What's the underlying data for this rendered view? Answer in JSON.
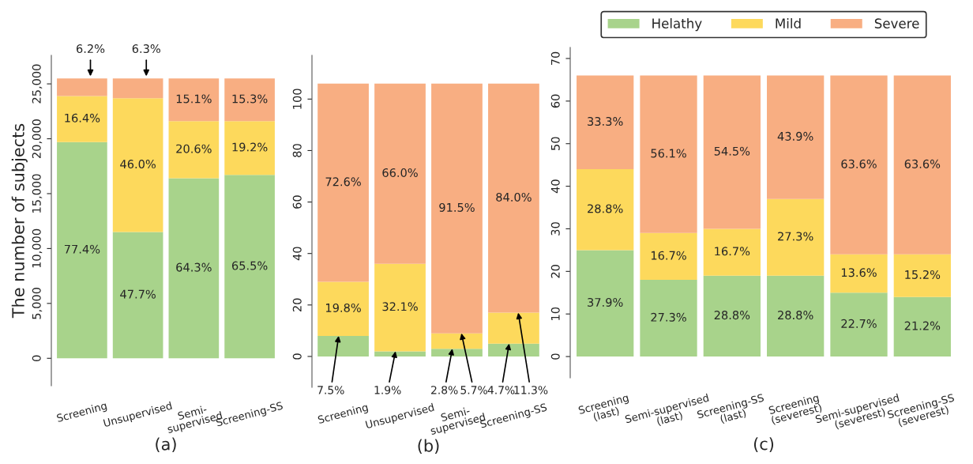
{
  "chart_data": [
    {
      "type": "bar",
      "stacked": true,
      "xlabel": "(a)",
      "ylabel": "The number of subjects",
      "categories": [
        "Screening",
        "Unsupervised",
        "Semi-\nsupervised",
        "Screening-SS"
      ],
      "series": [
        {
          "color": "#a8d38b",
          "values": [
            19700,
            11500,
            16400,
            16700
          ]
        },
        {
          "color": "#fdd95c",
          "values": [
            4200,
            12200,
            5200,
            4900
          ]
        },
        {
          "color": "#f8ae82",
          "values": [
            1600,
            1800,
            3900,
            3900
          ]
        }
      ],
      "annotations": [
        "77.4%",
        "16.4%",
        {
          "text": "6.2%",
          "x": "Screening",
          "y": 25500
        },
        "47.7%",
        "46.0%",
        {
          "text": "6.3%",
          "x": "Unsupervised",
          "y": 25500
        },
        "64.3%",
        "20.6%",
        "15.1%",
        "65.5%",
        "19.2%",
        "15.3%"
      ],
      "ylim": [
        -2500,
        27600
      ],
      "yticks": [
        0,
        {
          "value": 5000,
          "label": "5,000"
        },
        {
          "value": 10000,
          "label": "10,000"
        },
        {
          "value": 15000,
          "label": "15,000"
        },
        {
          "value": 20000,
          "label": "20,000"
        },
        {
          "value": 25000,
          "label": "25,000"
        }
      ],
      "grid": false,
      "legend": false
    },
    {
      "type": "bar",
      "stacked": true,
      "xlabel": "(b)",
      "categories": [
        "Screening",
        "Unsupervised",
        "Semi-\nsupervised",
        "Screening-SS"
      ],
      "series": [
        {
          "color": "#a8d38b",
          "values": [
            8,
            2,
            3,
            5
          ]
        },
        {
          "color": "#fdd95c",
          "values": [
            21,
            34,
            6,
            12
          ]
        },
        {
          "color": "#f8ae82",
          "values": [
            77,
            70,
            97,
            89
          ]
        }
      ],
      "annotations": [
        {
          "text": "7.5%",
          "x": "Screening",
          "y": 8
        },
        "19.8%",
        "72.6%",
        {
          "text": "1.9%",
          "x": "Unsupervised",
          "y": 2
        },
        "32.1%",
        "66.0%",
        {
          "text": "2.8%",
          "x": "Semi-\nsupervised",
          "y": 3
        },
        {
          "text": "5.7%",
          "x": "Semi-\nsupervised",
          "y": 9
        },
        "91.5%",
        {
          "text": "4.7%",
          "x": "Screening-SS",
          "y": 5
        },
        {
          "text": "11.3%",
          "x": "Screening-SS",
          "y": 17
        },
        "84.0%"
      ],
      "ylim": [
        -12,
        117
      ],
      "yticks": [
        0,
        20,
        40,
        60,
        80,
        100
      ],
      "grid": false,
      "legend": false
    },
    {
      "type": "bar",
      "stacked": true,
      "xlabel": "(c)",
      "categories": [
        "Screening\n(last)",
        "Semi-supervised\n(last)",
        "Screening-SS\n(last)",
        "Screening\n(severest)",
        "Semi-supervised\n(severest)",
        "Screening-SS\n(severest)"
      ],
      "series": [
        {
          "name": "Helathy",
          "color": "#a8d38b",
          "values": [
            25,
            18,
            19,
            19,
            15,
            14
          ]
        },
        {
          "name": "Mild",
          "color": "#fdd95c",
          "values": [
            19,
            11,
            11,
            18,
            9,
            10
          ]
        },
        {
          "name": "Severe",
          "color": "#f8ae82",
          "values": [
            22,
            37,
            36,
            29,
            42,
            42
          ]
        }
      ],
      "annotations": [
        "37.9%",
        "28.8%",
        "33.3%",
        "27.3%",
        "16.7%",
        "56.1%",
        "28.8%",
        "16.7%",
        "54.5%",
        "28.8%",
        "27.3%",
        "43.9%",
        "22.7%",
        "13.6%",
        "63.6%",
        "21.2%",
        "15.2%",
        "63.6%"
      ],
      "ylim": [
        -5,
        72.6
      ],
      "yticks": [
        0,
        10,
        20,
        30,
        40,
        50,
        60,
        70
      ],
      "grid": false,
      "legend": "top"
    }
  ]
}
